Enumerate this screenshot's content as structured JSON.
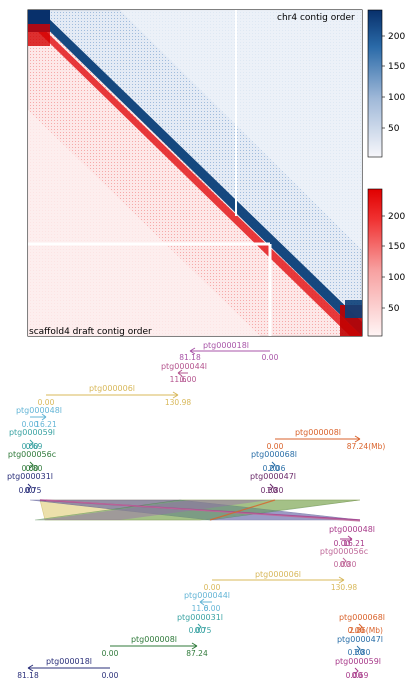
{
  "heatmap": {
    "label_top_right": "chr4 contig order",
    "label_bottom_left": "scaffold4 draft contig order",
    "blue_colorbar_ticks": [
      "200",
      "150",
      "100",
      "50"
    ],
    "red_colorbar_ticks": [
      "200",
      "150",
      "100",
      "50"
    ]
  },
  "upper_tracks": [
    {
      "name": "ptg000018l",
      "start": "81.18",
      "end": "0.00",
      "color": "#a855a8"
    },
    {
      "name": "ptg000044l",
      "start": "11.6",
      "end": "0.00",
      "color": "#b5558f"
    },
    {
      "name": "ptg000006l",
      "start": "0.00",
      "end": "130.98",
      "color": "#d8b85a"
    },
    {
      "name": "ptg000048l",
      "start": "0.00",
      "end": "16.21",
      "color": "#63b5d6"
    },
    {
      "name": "ptg000059l",
      "start": "0.00",
      "end": "0.69",
      "color": "#3aa3a3"
    },
    {
      "name": "ptg000056c",
      "start": "0.00",
      "end": "0.80",
      "color": "#2f7a3a"
    },
    {
      "name": "ptg000031l",
      "start": "0.00",
      "end": "0.75",
      "color": "#2a2f7a"
    },
    {
      "name": "ptg000008l",
      "start": "0.00",
      "end": "87.24(Mb)",
      "color": "#d9622b"
    },
    {
      "name": "ptg000068l",
      "start": "0.00",
      "end": "2.06",
      "color": "#2a6fa8"
    },
    {
      "name": "ptg000047l",
      "start": "0.00",
      "end": "1.80",
      "color": "#6a2a6a"
    }
  ],
  "lower_tracks": [
    {
      "name": "ptg000048l",
      "start": "0.00",
      "end": "16.21",
      "color": "#a83a8a"
    },
    {
      "name": "ptg000056c",
      "start": "0.00",
      "end": "0.80",
      "color": "#c06a9a"
    },
    {
      "name": "ptg000006l",
      "start": "0.00",
      "end": "130.98",
      "color": "#d8b85a"
    },
    {
      "name": "ptg000044l",
      "start": "0.00",
      "end": "11.6",
      "color": "#63b5d6"
    },
    {
      "name": "ptg000031l",
      "start": "0.00",
      "end": "0.75",
      "color": "#3aa3a3"
    },
    {
      "name": "ptg000068l",
      "start": "0.00",
      "end": "2.06(Mb)",
      "color": "#d9622b"
    },
    {
      "name": "ptg000008l",
      "start": "0.00",
      "end": "87.24",
      "color": "#2f7a3a"
    },
    {
      "name": "ptg000047l",
      "start": "0.00",
      "end": "1.80",
      "color": "#2a6fa8"
    },
    {
      "name": "ptg000018l",
      "start": "81.18",
      "end": "0.00",
      "color": "#2a2f7a"
    },
    {
      "name": "ptg000059l",
      "start": "0.00",
      "end": "0.69",
      "color": "#a83a8a"
    }
  ]
}
